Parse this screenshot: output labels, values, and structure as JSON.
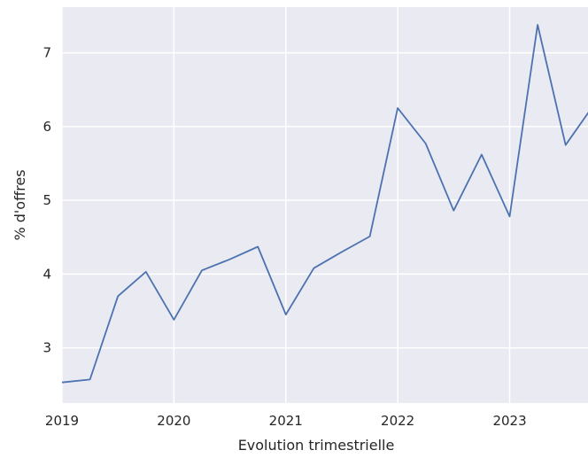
{
  "chart_data": {
    "type": "line",
    "title": "",
    "xlabel": "Evolution trimestrielle",
    "ylabel": "% d'offres",
    "xlim": [
      2019.0,
      2023.7
    ],
    "ylim": [
      2.25,
      7.62
    ],
    "x_ticks": [
      2019,
      2020,
      2021,
      2022,
      2023
    ],
    "x_tick_labels": [
      "2019",
      "2020",
      "2021",
      "2022",
      "2023"
    ],
    "y_ticks": [
      3,
      4,
      5,
      6,
      7
    ],
    "y_tick_labels": [
      "3",
      "4",
      "5",
      "6",
      "7"
    ],
    "grid": true,
    "legend": "none",
    "colors": {
      "line": "#4c72b0",
      "plot_background": "#eaeaf2",
      "grid": "#ffffff"
    },
    "series": [
      {
        "x": [
          2019.0,
          2019.25,
          2019.5,
          2019.75,
          2020.0,
          2020.25,
          2020.5,
          2020.75,
          2021.0,
          2021.25,
          2021.5,
          2021.75,
          2022.0,
          2022.25,
          2022.5,
          2022.75,
          2023.0,
          2023.25,
          2023.5,
          2023.75
        ],
        "values": [
          2.53,
          2.57,
          3.7,
          4.03,
          3.38,
          4.05,
          4.2,
          4.37,
          3.45,
          4.08,
          4.3,
          4.51,
          6.25,
          5.77,
          4.86,
          5.62,
          4.78,
          7.38,
          5.75,
          6.29
        ]
      }
    ]
  }
}
